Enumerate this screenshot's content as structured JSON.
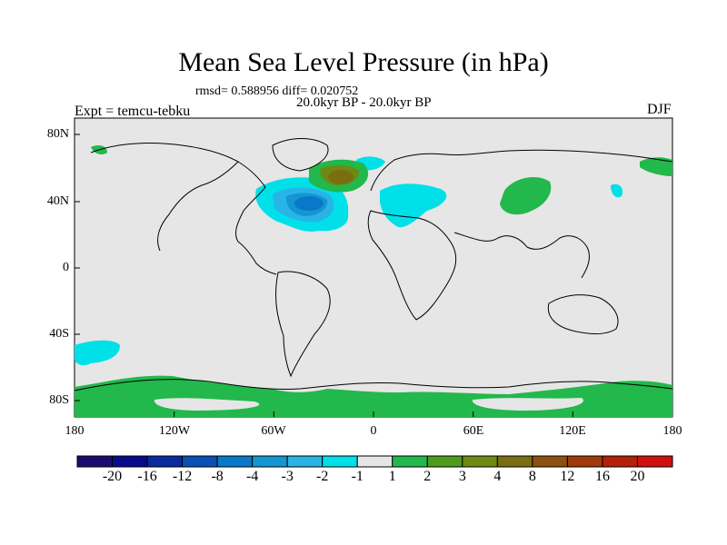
{
  "title": "Mean Sea Level Pressure (in hPa)",
  "stats_text": "rmsd= 0.588956 diff= 0.020752",
  "period_text": "20.0kyr BP - 20.0kyr BP",
  "left_label": "Expt = temcu-tebku",
  "right_label": "DJF",
  "y_ticks": [
    "80N",
    "40N",
    "0",
    "40S",
    "80S"
  ],
  "x_ticks": [
    "180",
    "120W",
    "60W",
    "0",
    "60E",
    "120E",
    "180"
  ],
  "colorbar": {
    "colors": [
      "#1e0b6e",
      "#0a0a8c",
      "#0a2aa0",
      "#0a50b4",
      "#0a78c8",
      "#1496d2",
      "#28b4e6",
      "#00e0e8",
      "#e6e6e6",
      "#22b84c",
      "#4e9c1e",
      "#6e8a14",
      "#7a6e10",
      "#8c5010",
      "#a03a0a",
      "#b4200a",
      "#d01010"
    ],
    "labels": [
      "-20",
      "-16",
      "-12",
      "-8",
      "-4",
      "-3",
      "-2",
      "-1",
      "1",
      "2",
      "3",
      "4",
      "8",
      "12",
      "16",
      "20"
    ]
  },
  "colors": {
    "background_gray": "#e6e6e6",
    "light_blue": "#00e0e8",
    "blue2": "#28b4e6",
    "blue3": "#1496d2",
    "blue4": "#0a78c8",
    "green": "#22b84c",
    "olive": "#6e8a14",
    "brown": "#7a6e10"
  }
}
